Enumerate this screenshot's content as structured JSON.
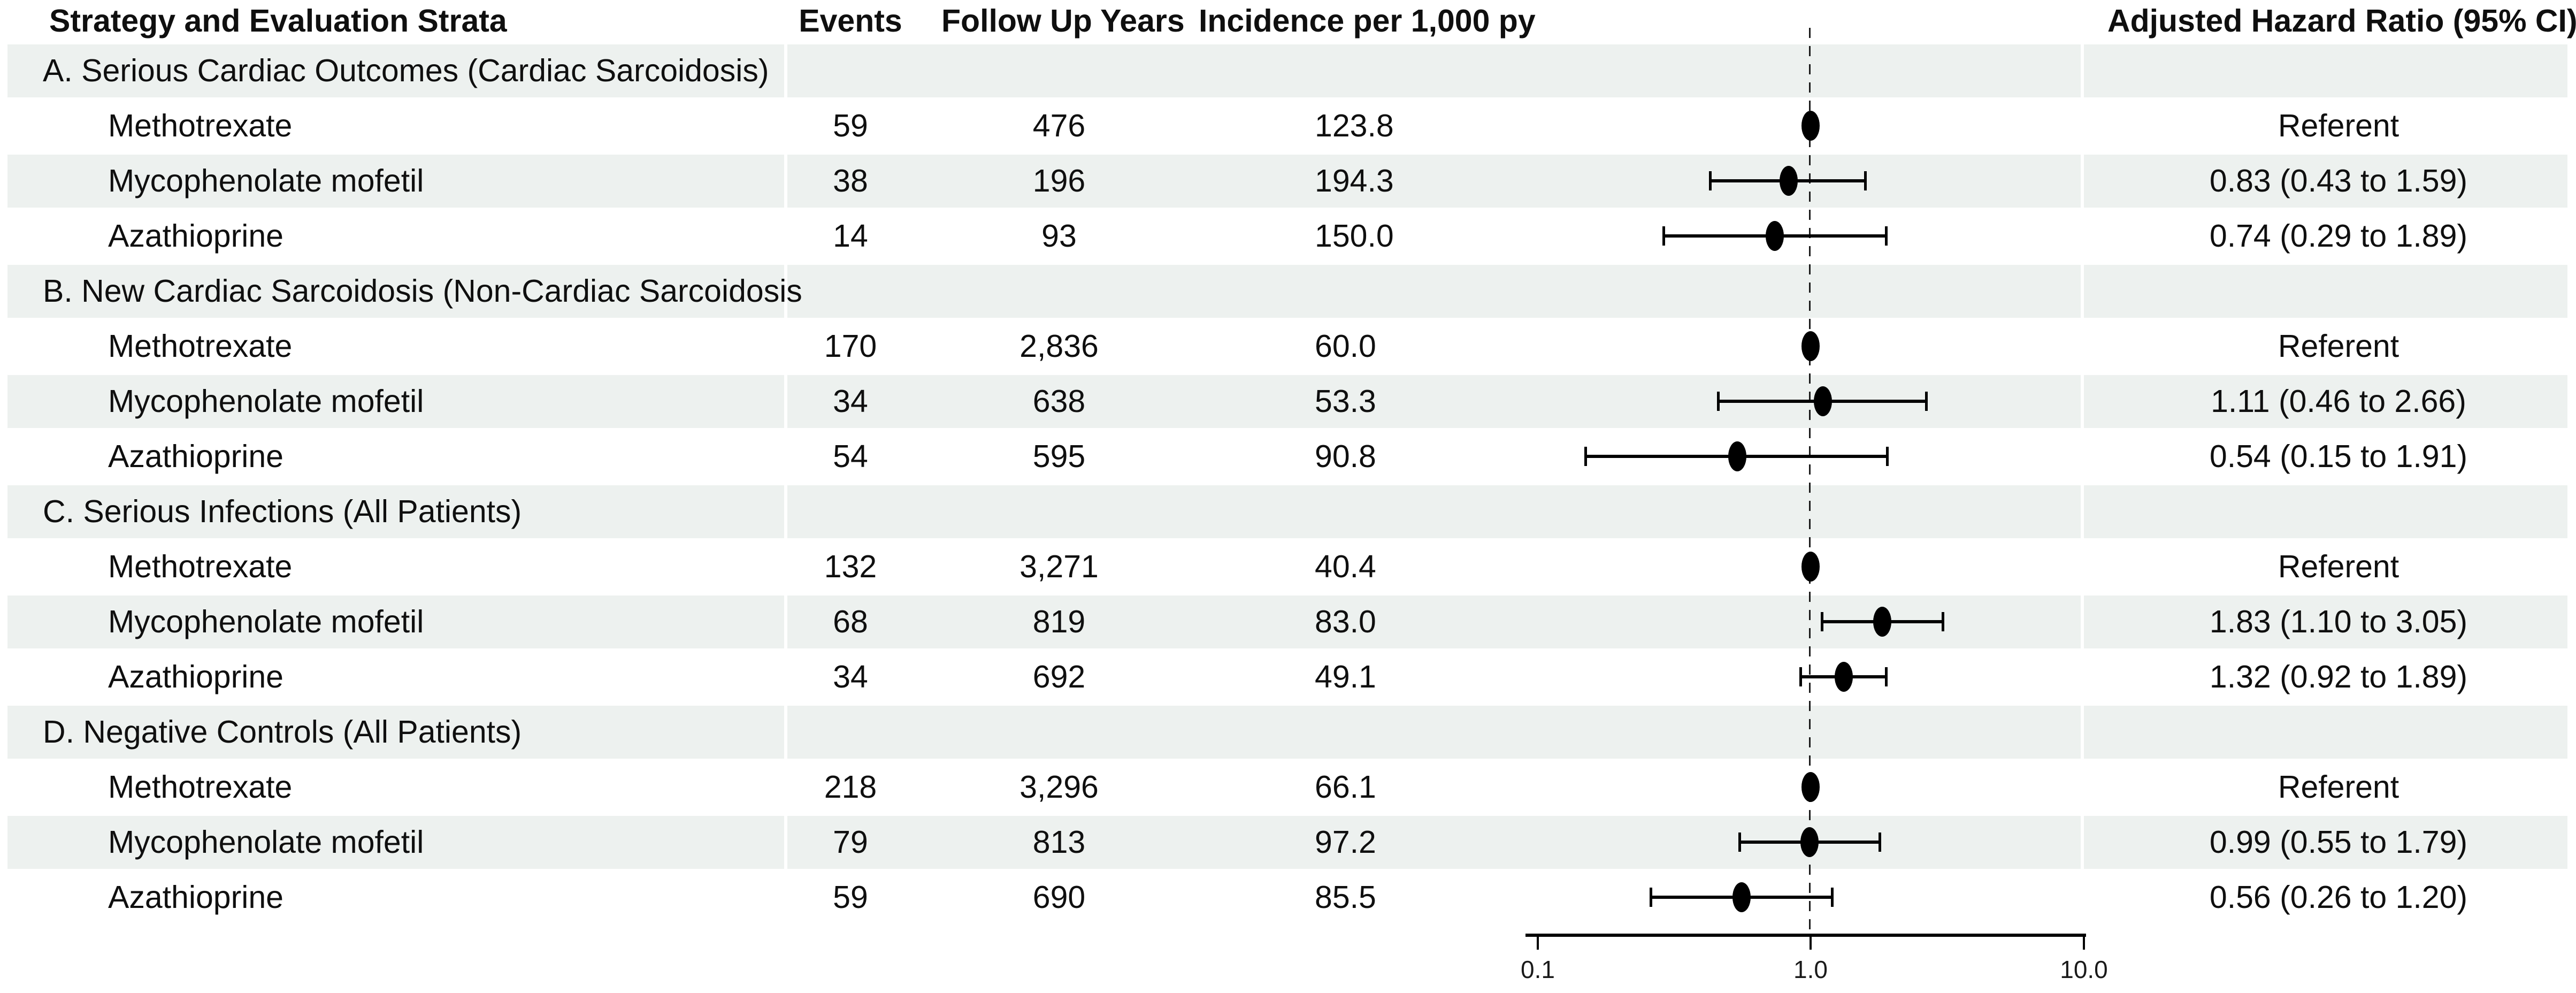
{
  "header": {
    "strategy": "Strategy and Evaluation Strata",
    "events": "Events",
    "follow_up": "Follow Up Years",
    "incidence": "Incidence per 1,000 py",
    "hazard_ratio": "Adjusted Hazard Ratio (95% CI)"
  },
  "axis": {
    "ticks": [
      "0.1",
      "1.0",
      "10.0"
    ]
  },
  "colors": {
    "stripe": "#edf1ef",
    "text": "#0f0f0f",
    "marker": "#000000",
    "reference_line": "#1c1c1c"
  },
  "chart_data": {
    "type": "forest",
    "x_scale": "log",
    "x_ticks": [
      0.1,
      1.0,
      10.0
    ],
    "reference_line": 1.0,
    "columns": [
      "Strategy and Evaluation Strata",
      "Events",
      "Follow Up Years",
      "Incidence per 1,000 py",
      "Adjusted Hazard Ratio (95% CI)"
    ],
    "sections": [
      {
        "label": "A. Serious Cardiac Outcomes (Cardiac Sarcoidosis)",
        "rows": [
          {
            "drug": "Methotrexate",
            "events": "59",
            "follow_up_years": "476",
            "incidence_per_1000py": "123.8",
            "hr_label": "Referent",
            "hr": 1.0,
            "referent": true
          },
          {
            "drug": "Mycophenolate mofetil",
            "events": "38",
            "follow_up_years": "196",
            "incidence_per_1000py": "194.3",
            "hr_label": "0.83 (0.43 to 1.59)",
            "hr": 0.83,
            "ci_low": 0.43,
            "ci_high": 1.59
          },
          {
            "drug": "Azathioprine",
            "events": "14",
            "follow_up_years": "93",
            "incidence_per_1000py": "150.0",
            "hr_label": "0.74 (0.29 to 1.89)",
            "hr": 0.74,
            "ci_low": 0.29,
            "ci_high": 1.89
          }
        ]
      },
      {
        "label": "B. New Cardiac Sarcoidosis (Non-Cardiac Sarcoidosis",
        "rows": [
          {
            "drug": "Methotrexate",
            "events": "170",
            "follow_up_years": "2,836",
            "incidence_per_1000py": "60.0",
            "hr_label": "Referent",
            "hr": 1.0,
            "referent": true
          },
          {
            "drug": "Mycophenolate mofetil",
            "events": "34",
            "follow_up_years": "638",
            "incidence_per_1000py": "53.3",
            "hr_label": "1.11 (0.46 to 2.66)",
            "hr": 1.11,
            "ci_low": 0.46,
            "ci_high": 2.66
          },
          {
            "drug": "Azathioprine",
            "events": "54",
            "follow_up_years": "595",
            "incidence_per_1000py": "90.8",
            "hr_label": "0.54 (0.15 to 1.91)",
            "hr": 0.54,
            "ci_low": 0.15,
            "ci_high": 1.91
          }
        ]
      },
      {
        "label": "C. Serious Infections (All Patients)",
        "rows": [
          {
            "drug": "Methotrexate",
            "events": "132",
            "follow_up_years": "3,271",
            "incidence_per_1000py": "40.4",
            "hr_label": "Referent",
            "hr": 1.0,
            "referent": true
          },
          {
            "drug": "Mycophenolate mofetil",
            "events": "68",
            "follow_up_years": "819",
            "incidence_per_1000py": "83.0",
            "hr_label": "1.83 (1.10 to 3.05)",
            "hr": 1.83,
            "ci_low": 1.1,
            "ci_high": 3.05
          },
          {
            "drug": "Azathioprine",
            "events": "34",
            "follow_up_years": "692",
            "incidence_per_1000py": "49.1",
            "hr_label": "1.32 (0.92 to 1.89)",
            "hr": 1.32,
            "ci_low": 0.92,
            "ci_high": 1.89
          }
        ]
      },
      {
        "label": "D. Negative Controls (All Patients)",
        "rows": [
          {
            "drug": "Methotrexate",
            "events": "218",
            "follow_up_years": "3,296",
            "incidence_per_1000py": "66.1",
            "hr_label": "Referent",
            "hr": 1.0,
            "referent": true
          },
          {
            "drug": "Mycophenolate mofetil",
            "events": "79",
            "follow_up_years": "813",
            "incidence_per_1000py": "97.2",
            "hr_label": "0.99 (0.55 to 1.79)",
            "hr": 0.99,
            "ci_low": 0.55,
            "ci_high": 1.79
          },
          {
            "drug": "Azathioprine",
            "events": "59",
            "follow_up_years": "690",
            "incidence_per_1000py": "85.5",
            "hr_label": "0.56 (0.26 to 1.20)",
            "hr": 0.56,
            "ci_low": 0.26,
            "ci_high": 1.2
          }
        ]
      }
    ]
  }
}
